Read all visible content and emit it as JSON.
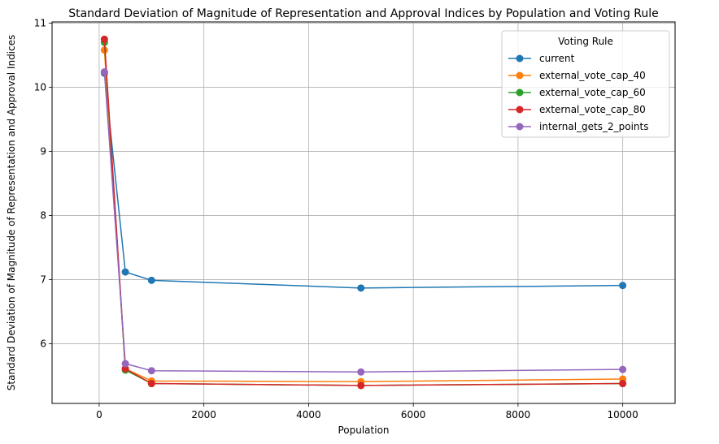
{
  "chart_data": {
    "type": "line",
    "title": "Standard Deviation of Magnitude of Representation and Approval Indices by Population and Voting Rule",
    "xlabel": "Population",
    "ylabel": "Standard Deviation of Magnitude of Representation and Approval Indices",
    "x": [
      100,
      500,
      1000,
      5000,
      10000
    ],
    "xlim": [
      -900,
      11000
    ],
    "ylim": [
      5.07,
      11.02
    ],
    "xticks": [
      0,
      2000,
      4000,
      6000,
      8000,
      10000
    ],
    "yticks": [
      6,
      7,
      8,
      9,
      10,
      11
    ],
    "grid": true,
    "legend_title": "Voting Rule",
    "legend_position": "top-right",
    "series": [
      {
        "name": "current",
        "color": "#1f77b4",
        "values": [
          10.22,
          7.12,
          6.99,
          6.87,
          6.91
        ]
      },
      {
        "name": "external_vote_cap_40",
        "color": "#ff7f0e",
        "values": [
          10.58,
          5.61,
          5.42,
          5.41,
          5.45
        ]
      },
      {
        "name": "external_vote_cap_60",
        "color": "#2ca02c",
        "values": [
          10.7,
          5.59,
          5.38,
          5.35,
          5.38
        ]
      },
      {
        "name": "external_vote_cap_80",
        "color": "#d62728",
        "values": [
          10.75,
          5.61,
          5.38,
          5.35,
          5.38
        ]
      },
      {
        "name": "internal_gets_2_points",
        "color": "#9467bd",
        "values": [
          10.24,
          5.69,
          5.58,
          5.56,
          5.6
        ]
      }
    ]
  }
}
